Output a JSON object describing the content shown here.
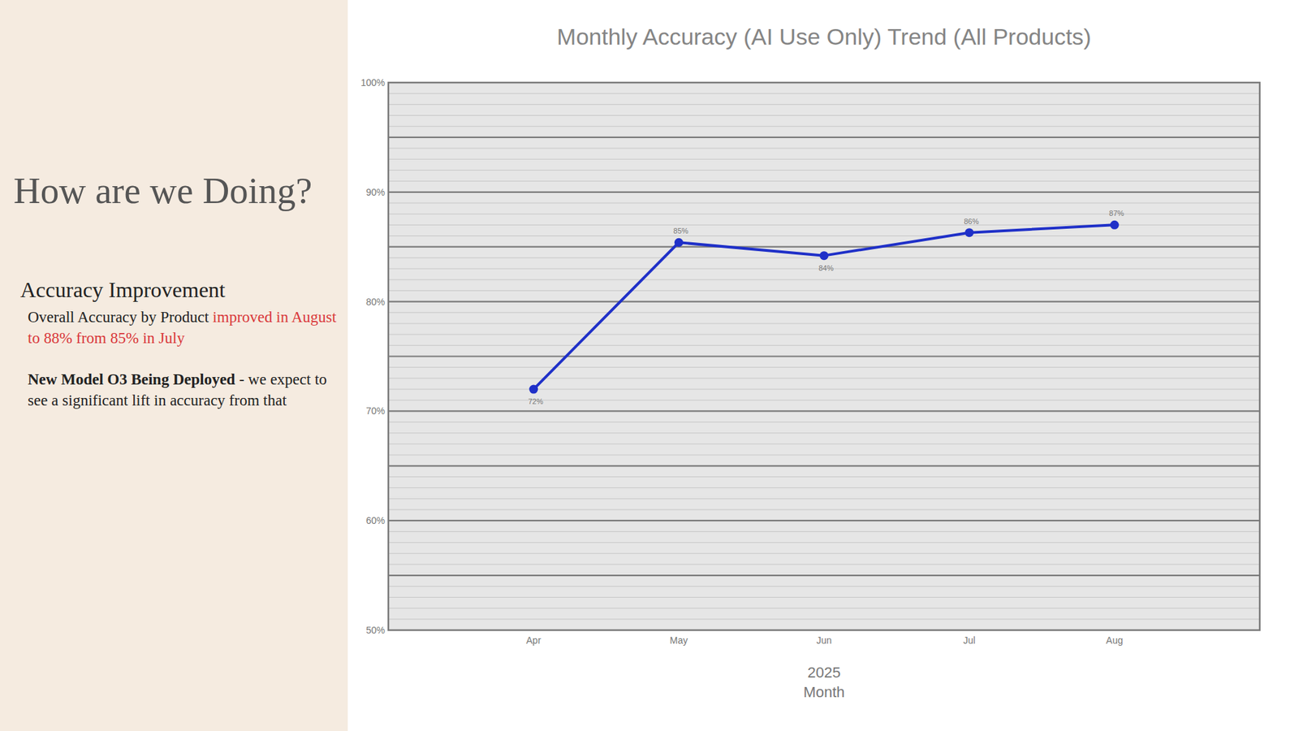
{
  "panel": {
    "heading": "How are we Doing?",
    "section_title": "Accuracy Improvement",
    "paragraphs": [
      {
        "text": "Overall Accuracy by Product ",
        "highlight": "improved in August to 88% from 85% in July"
      },
      {
        "bold": "New Model O3 Being Deployed",
        "text": " - we expect to see a significant lift in accuracy from that"
      }
    ]
  },
  "chart_data": {
    "type": "line",
    "title": "Monthly Accuracy (AI Use Only) Trend (All Products)",
    "categories": [
      "Apr",
      "May",
      "Jun",
      "Jul",
      "Aug"
    ],
    "values": [
      72,
      85.4,
      84.2,
      86.3,
      87
    ],
    "value_labels": [
      "72%",
      "85%",
      "84%",
      "86%",
      "87%"
    ],
    "data_labels": true,
    "color": "#1f30c8",
    "marker": "circle",
    "xlabel_top": "2025",
    "xlabel": "Month",
    "ylim": [
      50,
      100
    ],
    "yticks": [
      {
        "value": 50,
        "label": "50%"
      },
      {
        "value": 60,
        "label": "60%"
      },
      {
        "value": 70,
        "label": "70%"
      },
      {
        "value": 80,
        "label": "80%"
      },
      {
        "value": 90,
        "label": "90%"
      },
      {
        "value": 100,
        "label": "100%"
      }
    ],
    "grid": true
  }
}
